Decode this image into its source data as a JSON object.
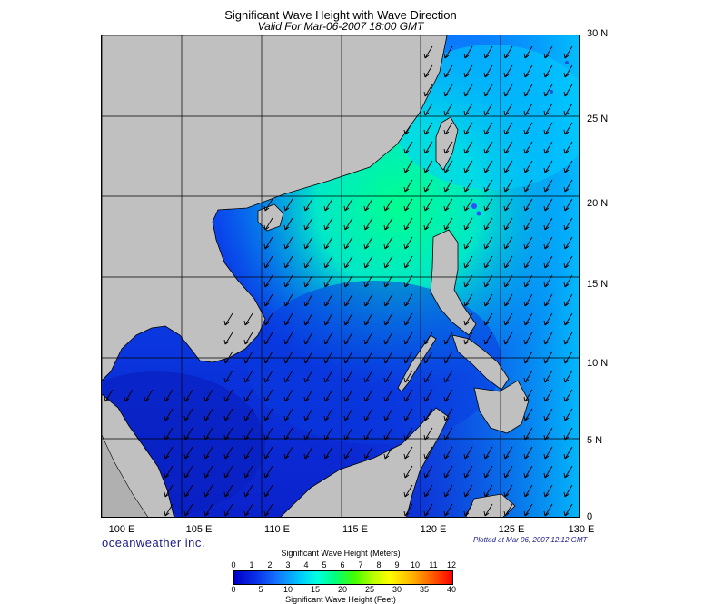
{
  "title": "Significant Wave Height with Wave Direction",
  "subtitle": "Valid For Mar-06-2007 18:00 GMT",
  "lat_labels": [
    "30 N",
    "25 N",
    "20 N",
    "15 N",
    "10 N",
    "5 N",
    "0"
  ],
  "lon_labels": [
    "100 E",
    "105 E",
    "110 E",
    "115 E",
    "120 E",
    "125 E",
    "130 E"
  ],
  "brand": "oceanweather inc.",
  "plotted": "Plotted at Mar 06, 2007 12:12 GMT",
  "legend": {
    "meters_title": "Significant Wave Height (Meters)",
    "meters_ticks": [
      "0",
      "1",
      "2",
      "3",
      "4",
      "5",
      "6",
      "7",
      "8",
      "9",
      "10",
      "11",
      "12"
    ],
    "feet_ticks": [
      "0",
      "5",
      "10",
      "15",
      "20",
      "25",
      "30",
      "35",
      "40"
    ],
    "feet_title": "Significant Wave Height (Feet)"
  },
  "colors": {
    "land": "#c0c0c0",
    "low_wave": "#1428d8",
    "mid_wave": "#00a0ff",
    "high_wave": "#00ff90"
  }
}
